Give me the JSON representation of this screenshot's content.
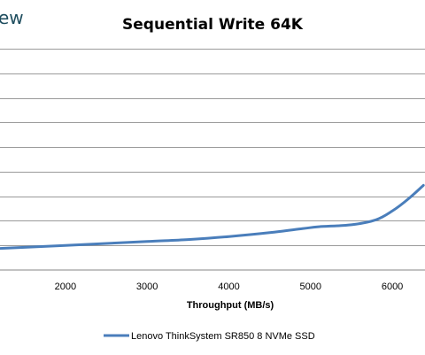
{
  "branding": {
    "logo_fragment": "ew"
  },
  "chart_data": {
    "type": "line",
    "title": "Sequential Write 64K",
    "xlabel": "Throughput (MB/s)",
    "ylabel": "",
    "xlim": [
      1200,
      6400
    ],
    "x_ticks": [
      2000,
      3000,
      4000,
      5000,
      6000
    ],
    "horizontal_grid": true,
    "legend_position": "bottom",
    "series": [
      {
        "name": "Lenovo ThinkSystem SR850 8 NVMe SSD",
        "color": "#4a7ebb",
        "x": [
          1200,
          1500,
          2000,
          2500,
          3000,
          3500,
          4000,
          4500,
          4900,
          5100,
          5500,
          5800,
          6000,
          6200,
          6380
        ],
        "y": [
          0.44,
          0.46,
          0.5,
          0.54,
          0.58,
          0.62,
          0.68,
          0.76,
          0.84,
          0.88,
          0.92,
          1.02,
          1.2,
          1.45,
          1.72
        ]
      }
    ]
  },
  "y_range": [
    0,
    4.5
  ]
}
